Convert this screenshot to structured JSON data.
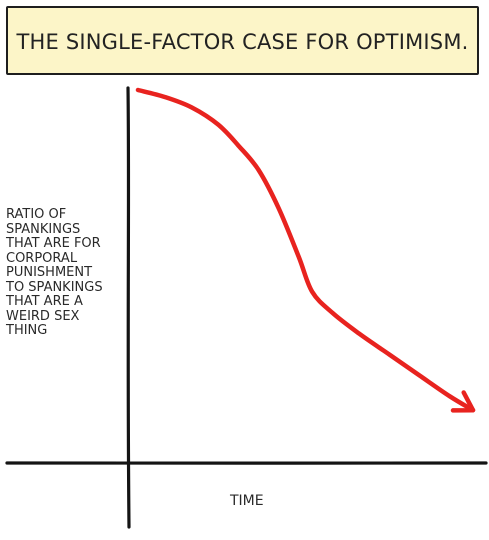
{
  "title": "THE SINGLE-FACTOR CASE FOR OPTIMISM.",
  "chart_data": {
    "type": "line",
    "title": "THE SINGLE-FACTOR CASE FOR OPTIMISM.",
    "xlabel": "TIME",
    "ylabel_lines": [
      "RATIO OF",
      "SPANKINGS",
      "THAT ARE FOR",
      "CORPORAL",
      "PUNISHMENT",
      "TO SPANKINGS",
      "THAT ARE A",
      "WEIRD SEX",
      "THING"
    ],
    "xlim": [
      0,
      1
    ],
    "ylim": [
      0,
      1
    ],
    "grid": false,
    "series": [
      {
        "color": "#e8231f",
        "arrow_end": true,
        "x": [
          0.0,
          0.08,
          0.16,
          0.24,
          0.3,
          0.36,
          0.42,
          0.48,
          0.52,
          0.58,
          0.66,
          0.75,
          0.84,
          0.93,
          1.0
        ],
        "y": [
          1.0,
          0.98,
          0.95,
          0.9,
          0.84,
          0.77,
          0.66,
          0.52,
          0.42,
          0.36,
          0.3,
          0.24,
          0.18,
          0.12,
          0.08
        ]
      }
    ]
  },
  "colors": {
    "title_background": "#fcf5c8",
    "axis": "#141414",
    "curve": "#e8231f"
  }
}
